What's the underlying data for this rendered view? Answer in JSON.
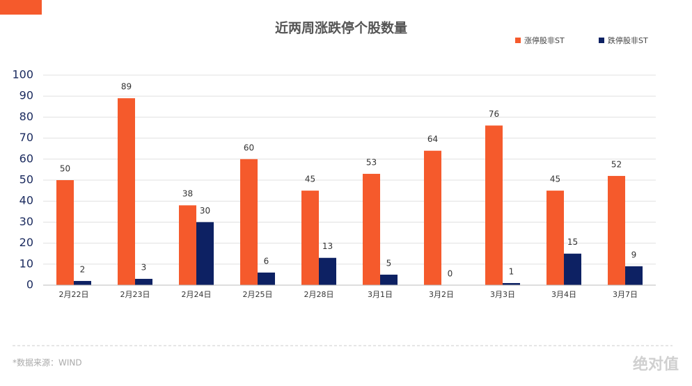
{
  "chart_data": {
    "type": "bar",
    "title": "近两周涨跌停个股数量",
    "categories": [
      "2月22日",
      "2月23日",
      "2月24日",
      "2月25日",
      "2月28日",
      "3月1日",
      "3月2日",
      "3月3日",
      "3月4日",
      "3月7日"
    ],
    "series": [
      {
        "name": "涨停股非ST",
        "color": "#f55a2c",
        "values": [
          50,
          89,
          38,
          60,
          45,
          53,
          64,
          76,
          45,
          52
        ]
      },
      {
        "name": "跌停股非ST",
        "color": "#0d2163",
        "values": [
          2,
          3,
          30,
          6,
          13,
          5,
          0,
          1,
          15,
          9
        ]
      }
    ],
    "ylim": [
      0,
      100
    ],
    "yticks": [
      0,
      10,
      20,
      30,
      40,
      50,
      60,
      70,
      80,
      90,
      100
    ],
    "grid": true,
    "legend": "top-right",
    "source": "*数据来源：WIND",
    "watermark": "绝对值"
  }
}
